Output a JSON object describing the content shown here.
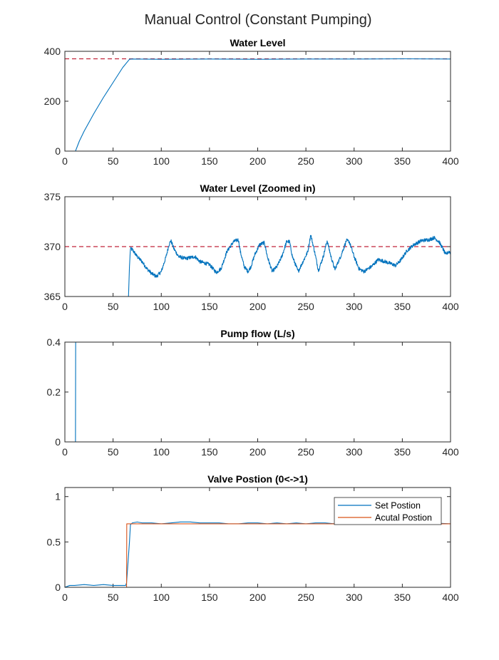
{
  "figure": {
    "title": "Manual Control (Constant Pumping)"
  },
  "colors": {
    "blue": "#0072bd",
    "orange": "#d95319",
    "ref": "#c0243a",
    "axes": "#262626"
  },
  "chart_data": [
    {
      "type": "line",
      "title": "Water Level",
      "xlim": [
        0,
        400
      ],
      "ylim": [
        0,
        400
      ],
      "xticks": [
        "0",
        "50",
        "100",
        "150",
        "200",
        "250",
        "300",
        "350",
        "400"
      ],
      "yticks": [
        "0",
        "200",
        "400"
      ],
      "reference_line": {
        "y": 370,
        "style": "dashed",
        "color": "#c0243a"
      },
      "series": [
        {
          "color": "#0072bd",
          "x": [
            0,
            11,
            13,
            15,
            20,
            30,
            40,
            50,
            60,
            67,
            70,
            100,
            150,
            200,
            250,
            300,
            350,
            400
          ],
          "y": [
            0,
            0,
            20,
            40,
            80,
            150,
            215,
            275,
            335,
            368,
            369,
            368,
            369,
            368,
            369,
            369,
            370,
            369
          ]
        }
      ]
    },
    {
      "type": "line",
      "title": "Water Level (Zoomed in)",
      "xlim": [
        0,
        400
      ],
      "ylim": [
        365,
        375
      ],
      "xticks": [
        "0",
        "50",
        "100",
        "150",
        "200",
        "250",
        "300",
        "350",
        "400"
      ],
      "yticks": [
        "365",
        "370",
        "375"
      ],
      "reference_line": {
        "y": 370,
        "style": "dashed",
        "color": "#c0243a"
      },
      "series": [
        {
          "color": "#0072bd",
          "noise": 0.18,
          "x": [
            66,
            67,
            68,
            70,
            75,
            80,
            85,
            90,
            95,
            100,
            105,
            108,
            110,
            113,
            118,
            125,
            135,
            140,
            150,
            157,
            162,
            168,
            175,
            180,
            182,
            186,
            190,
            193,
            197,
            202,
            207,
            210,
            215,
            220,
            225,
            230,
            233,
            236,
            242,
            247,
            252,
            255,
            259,
            263,
            268,
            272,
            276,
            280,
            286,
            292,
            295,
            300,
            305,
            310,
            318,
            325,
            332,
            338,
            343,
            348,
            355,
            362,
            370,
            378,
            383,
            388,
            392,
            395,
            398,
            400
          ],
          "y": [
            365,
            368,
            369.8,
            369.7,
            369.0,
            368.5,
            367.8,
            367.3,
            367.0,
            367.5,
            369.0,
            370.2,
            370.6,
            369.8,
            369.0,
            368.8,
            369.0,
            368.5,
            368.2,
            367.4,
            367.8,
            369.5,
            370.5,
            370.7,
            369.5,
            368.0,
            367.5,
            368.0,
            369.2,
            370.2,
            370.4,
            369.0,
            367.5,
            368.0,
            369.0,
            370.5,
            370.5,
            369.0,
            367.5,
            368.5,
            369.5,
            371.2,
            369.5,
            367.6,
            369.0,
            370.6,
            369.0,
            367.7,
            369.0,
            370.6,
            370.5,
            369.0,
            367.8,
            367.5,
            368.0,
            368.7,
            368.5,
            368.3,
            368.1,
            368.6,
            369.6,
            370.2,
            370.6,
            370.7,
            370.9,
            370.5,
            369.8,
            369.2,
            369.5,
            369.4
          ]
        }
      ]
    },
    {
      "type": "line",
      "title": "Pump flow (L/s)",
      "xlim": [
        0,
        400
      ],
      "ylim": [
        0,
        0.4
      ],
      "xticks": [
        "0",
        "50",
        "100",
        "150",
        "200",
        "250",
        "300",
        "350",
        "400"
      ],
      "yticks": [
        "0",
        "0.2",
        "0.4"
      ],
      "series": [
        {
          "color": "#0072bd",
          "x": [
            0,
            11,
            11.2,
            400
          ],
          "y": [
            0,
            0,
            0.4,
            0.4
          ]
        }
      ]
    },
    {
      "type": "line",
      "title": "Valve Postion (0<->1)",
      "xlim": [
        0,
        400
      ],
      "ylim": [
        0,
        1.1
      ],
      "xticks": [
        "0",
        "50",
        "100",
        "150",
        "200",
        "250",
        "300",
        "350",
        "400"
      ],
      "yticks": [
        "0",
        "0.5",
        "1"
      ],
      "legend": {
        "position": "top-right"
      },
      "series": [
        {
          "name": "Set Postion",
          "color": "#0072bd",
          "x": [
            0,
            5,
            10,
            20,
            30,
            40,
            50,
            60,
            63,
            64,
            67,
            68,
            70,
            75,
            80,
            90,
            100,
            110,
            120,
            130,
            140,
            150,
            160,
            170,
            180,
            190,
            200,
            210,
            220,
            230,
            240,
            250,
            260,
            270,
            280,
            290,
            300,
            320,
            340,
            360,
            380,
            400
          ],
          "y": [
            0,
            0.02,
            0.02,
            0.03,
            0.02,
            0.03,
            0.02,
            0.02,
            0.02,
            0.05,
            0.5,
            0.69,
            0.71,
            0.72,
            0.71,
            0.71,
            0.7,
            0.71,
            0.72,
            0.72,
            0.71,
            0.71,
            0.71,
            0.7,
            0.7,
            0.71,
            0.71,
            0.7,
            0.71,
            0.7,
            0.71,
            0.7,
            0.71,
            0.71,
            0.7,
            0.7,
            0.71,
            0.7,
            0.71,
            0.7,
            0.71,
            0.7
          ]
        },
        {
          "name": "Acutal Postion",
          "color": "#d95319",
          "x": [
            0,
            64,
            64.2,
            400
          ],
          "y": [
            0,
            0,
            0.7,
            0.7
          ]
        }
      ]
    }
  ]
}
